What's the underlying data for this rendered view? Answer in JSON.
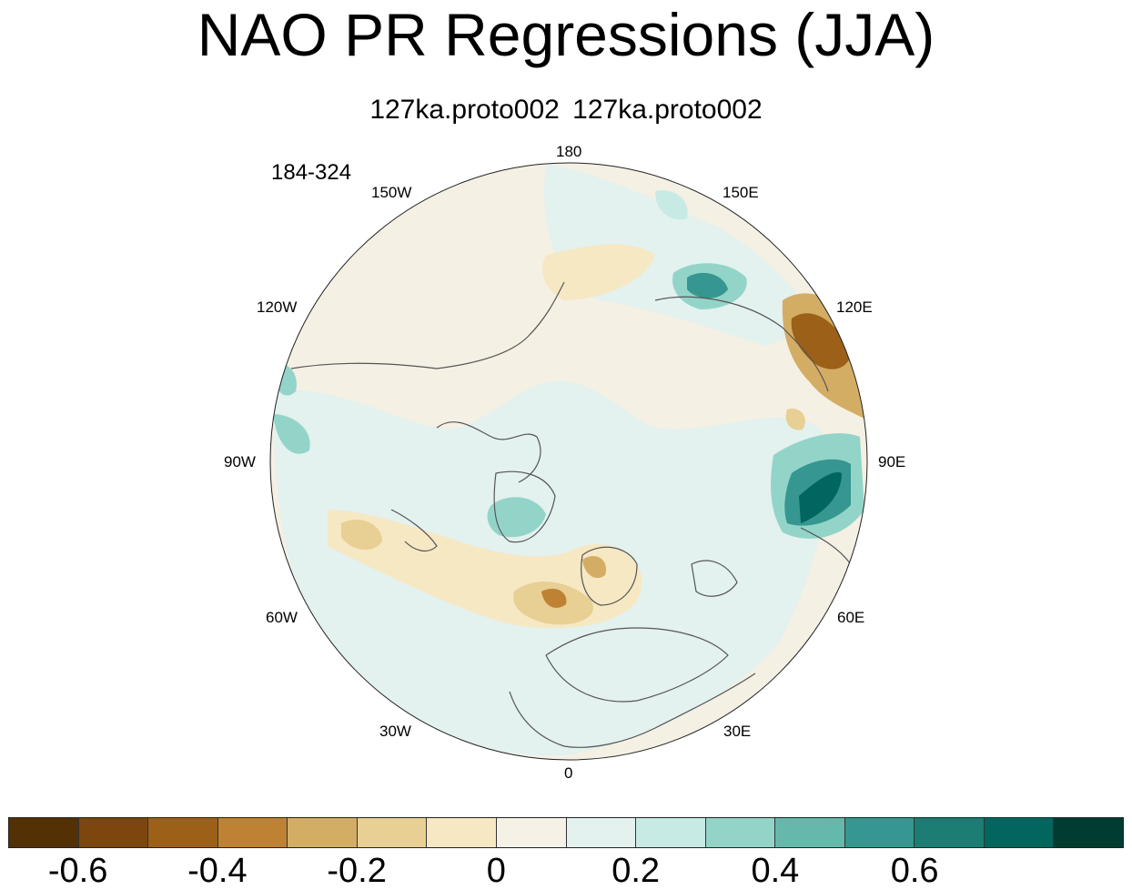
{
  "title": "NAO PR Regressions (JJA)",
  "subtitle": "127ka.proto002  127ka.proto002",
  "years": "184-324",
  "lon_labels": {
    "n180": "180",
    "w150": "150W",
    "e150": "150E",
    "w120": "120W",
    "e120": "120E",
    "w90": "90W",
    "e90": "90E",
    "w60": "60W",
    "e60": "60E",
    "w30": "30W",
    "e30": "30E",
    "zero": "0"
  },
  "colorbar": {
    "colors": [
      "#543005",
      "#7b470e",
      "#9c6019",
      "#bf8232",
      "#d4ad65",
      "#e8cf93",
      "#f6e8c3",
      "#f5f1e6",
      "#e3f1ef",
      "#c7eae5",
      "#93d4c9",
      "#65b9ac",
      "#35978f",
      "#1b7d74",
      "#01665e",
      "#003c30"
    ],
    "labels": [
      "-0.6",
      "-0.4",
      "-0.2",
      "0",
      "0.2",
      "0.4",
      "0.6"
    ]
  },
  "map": {
    "projection": "north-polar-stereographic",
    "variable": "PR",
    "background_color": "#f5f0e4"
  }
}
